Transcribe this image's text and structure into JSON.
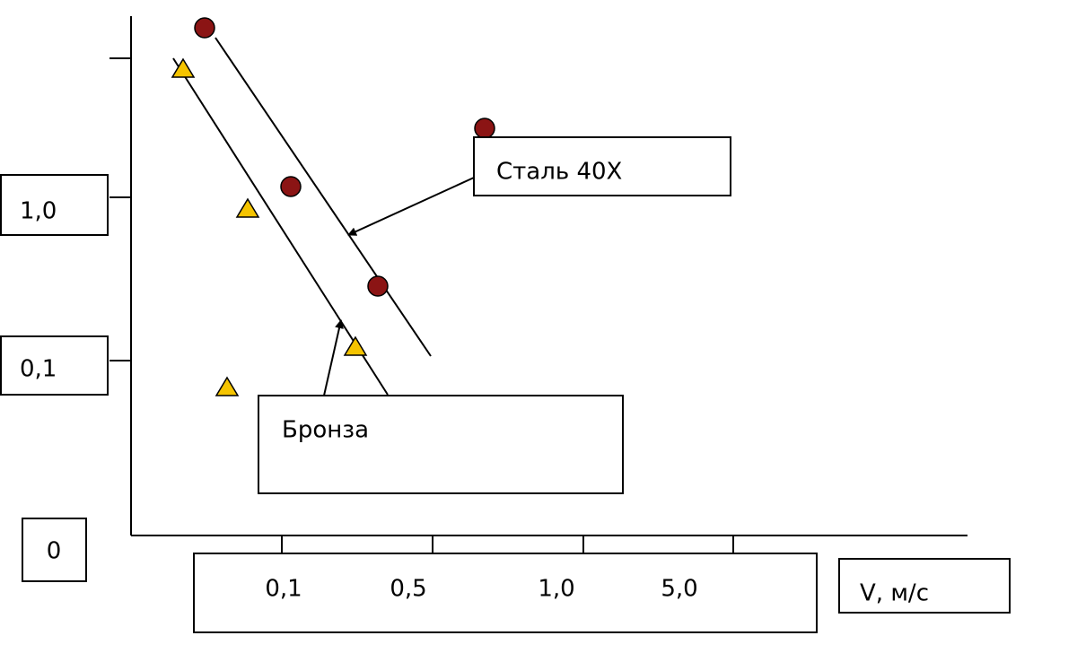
{
  "y_axis": {
    "labels": [
      "1,0",
      "0,1"
    ],
    "origin": "0"
  },
  "x_axis": {
    "labels": [
      "0,1",
      "0,5",
      "1,0",
      "5,0"
    ],
    "title": "V, м/с"
  },
  "callouts": [
    {
      "label": "Сталь 40Х"
    },
    {
      "label": "Бронза"
    }
  ]
}
